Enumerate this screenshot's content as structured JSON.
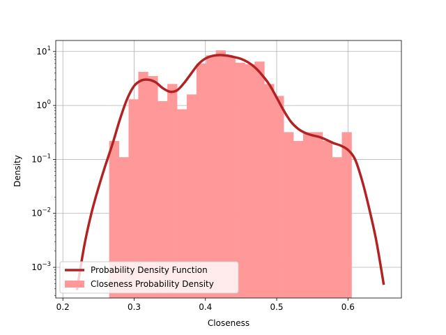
{
  "chart_data": {
    "type": "bar",
    "title": "",
    "xlabel": "Closeness",
    "ylabel": "Density",
    "xlim": [
      0.19,
      0.675
    ],
    "ylim": [
      0.00027,
      16
    ],
    "yscale": "log",
    "grid": true,
    "legend_placement": "lower-left",
    "x_ticks": [
      0.2,
      0.3,
      0.4,
      0.5,
      0.6
    ],
    "x_tick_labels": [
      "0.2",
      "0.3",
      "0.4",
      "0.5",
      "0.6"
    ],
    "y_ticks": [
      0.001,
      0.01,
      0.1,
      1,
      10
    ],
    "y_tick_labels": [
      {
        "base": "10",
        "exp": "−3"
      },
      {
        "base": "10",
        "exp": "−2"
      },
      {
        "base": "10",
        "exp": "−1"
      },
      {
        "base": "10",
        "exp": "0"
      },
      {
        "base": "10",
        "exp": "1"
      }
    ],
    "histogram": {
      "name": "Closeness Probability Density",
      "color": "#ff9999",
      "bin_edges": [
        0.265,
        0.2786,
        0.2922,
        0.3058,
        0.3194,
        0.333,
        0.3466,
        0.3602,
        0.3738,
        0.3874,
        0.401,
        0.4146,
        0.4282,
        0.4418,
        0.4554,
        0.469,
        0.4826,
        0.4962,
        0.5098,
        0.5234,
        0.537,
        0.5506,
        0.5642,
        0.5778,
        0.5914,
        0.605
      ],
      "densities": [
        0.22,
        0.11,
        1.3,
        4.2,
        3.5,
        1.2,
        2.5,
        0.85,
        1.6,
        6.0,
        8.5,
        10.5,
        8.2,
        6.2,
        5.8,
        6.5,
        2.5,
        1.5,
        0.32,
        0.22,
        0.32,
        0.32,
        0.22,
        0.11,
        0.32
      ]
    },
    "curve": {
      "name": "Probability Density Function",
      "color": "#b22222",
      "x": [
        0.22,
        0.23,
        0.24,
        0.25,
        0.26,
        0.27,
        0.28,
        0.29,
        0.3,
        0.31,
        0.32,
        0.33,
        0.34,
        0.35,
        0.36,
        0.37,
        0.38,
        0.39,
        0.4,
        0.41,
        0.42,
        0.43,
        0.44,
        0.45,
        0.46,
        0.47,
        0.48,
        0.49,
        0.5,
        0.51,
        0.52,
        0.53,
        0.54,
        0.55,
        0.56,
        0.57,
        0.58,
        0.59,
        0.6,
        0.61,
        0.62,
        0.63,
        0.64,
        0.65
      ],
      "y": [
        0.0004,
        0.0025,
        0.01,
        0.03,
        0.08,
        0.2,
        0.55,
        1.3,
        2.3,
        2.9,
        3.0,
        2.7,
        2.1,
        1.8,
        1.9,
        2.6,
        3.9,
        5.8,
        7.4,
        8.3,
        8.6,
        8.4,
        7.9,
        7.3,
        6.3,
        5.0,
        3.6,
        2.4,
        1.4,
        0.8,
        0.5,
        0.37,
        0.31,
        0.28,
        0.26,
        0.23,
        0.2,
        0.18,
        0.15,
        0.1,
        0.04,
        0.012,
        0.003,
        0.0005
      ]
    },
    "legend": [
      {
        "label": "Probability Density Function",
        "kind": "line"
      },
      {
        "label": "Closeness Probability Density",
        "kind": "patch"
      }
    ]
  }
}
